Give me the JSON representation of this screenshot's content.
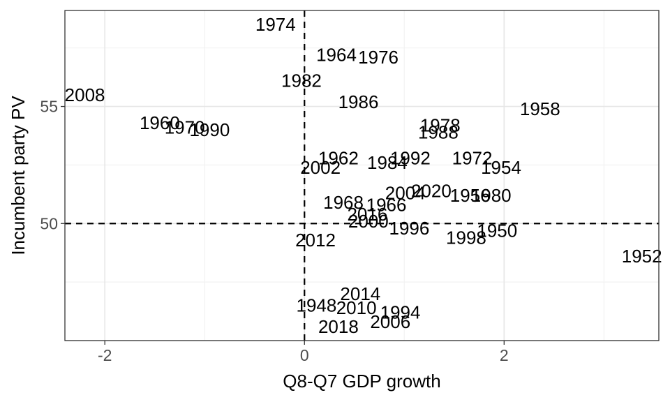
{
  "chart_data": {
    "type": "scatter",
    "title": "",
    "xlabel": "Q8-Q7 GDP growth",
    "ylabel": "Incumbent party PV",
    "xlim": [
      -2.4,
      3.55
    ],
    "ylim": [
      45.0,
      59.1
    ],
    "x_ticks": [
      -2,
      0,
      2
    ],
    "x_tick_labels": [
      "-2",
      "0",
      "2"
    ],
    "y_ticks": [
      50,
      55
    ],
    "y_tick_labels": [
      "50",
      "55"
    ],
    "grid": true,
    "reference_lines": {
      "x": 0,
      "y": 50,
      "style": "dashed"
    },
    "points": [
      {
        "label": "1948",
        "x": 0.12,
        "y": 46.5
      },
      {
        "label": "1950",
        "x": 1.93,
        "y": 49.7
      },
      {
        "label": "1952",
        "x": 3.38,
        "y": 48.6
      },
      {
        "label": "1954",
        "x": 1.97,
        "y": 52.4
      },
      {
        "label": "1956",
        "x": 1.66,
        "y": 51.2
      },
      {
        "label": "1958",
        "x": 2.36,
        "y": 54.9
      },
      {
        "label": "1960",
        "x": -1.45,
        "y": 54.3
      },
      {
        "label": "1962",
        "x": 0.34,
        "y": 52.8
      },
      {
        "label": "1964",
        "x": 0.32,
        "y": 57.2
      },
      {
        "label": "1966",
        "x": 0.82,
        "y": 50.8
      },
      {
        "label": "1968",
        "x": 0.39,
        "y": 50.9
      },
      {
        "label": "1970",
        "x": -1.2,
        "y": 54.1
      },
      {
        "label": "1972",
        "x": 1.68,
        "y": 52.8
      },
      {
        "label": "1974",
        "x": -0.29,
        "y": 58.5
      },
      {
        "label": "1976",
        "x": 0.74,
        "y": 57.1
      },
      {
        "label": "1978",
        "x": 1.36,
        "y": 54.2
      },
      {
        "label": "1980",
        "x": 1.87,
        "y": 51.2
      },
      {
        "label": "1982",
        "x": -0.03,
        "y": 56.1
      },
      {
        "label": "1984",
        "x": 0.83,
        "y": 52.6
      },
      {
        "label": "1986",
        "x": 0.54,
        "y": 55.2
      },
      {
        "label": "1988",
        "x": 1.34,
        "y": 53.9
      },
      {
        "label": "1990",
        "x": -0.95,
        "y": 54.0
      },
      {
        "label": "1992",
        "x": 1.06,
        "y": 52.8
      },
      {
        "label": "1994",
        "x": 0.96,
        "y": 46.2
      },
      {
        "label": "1996",
        "x": 1.05,
        "y": 49.8
      },
      {
        "label": "1998",
        "x": 1.62,
        "y": 49.4
      },
      {
        "label": "2000",
        "x": 0.64,
        "y": 50.1
      },
      {
        "label": "2002",
        "x": 0.16,
        "y": 52.4
      },
      {
        "label": "2004",
        "x": 1.01,
        "y": 51.3
      },
      {
        "label": "2006",
        "x": 0.86,
        "y": 45.8
      },
      {
        "label": "2008",
        "x": -2.2,
        "y": 55.5
      },
      {
        "label": "2010",
        "x": 0.52,
        "y": 46.4
      },
      {
        "label": "2012",
        "x": 0.11,
        "y": 49.3
      },
      {
        "label": "2014",
        "x": 0.56,
        "y": 47.0
      },
      {
        "label": "2016",
        "x": 0.63,
        "y": 50.4
      },
      {
        "label": "2018",
        "x": 0.34,
        "y": 45.6
      },
      {
        "label": "2020",
        "x": 1.27,
        "y": 51.4
      }
    ]
  }
}
